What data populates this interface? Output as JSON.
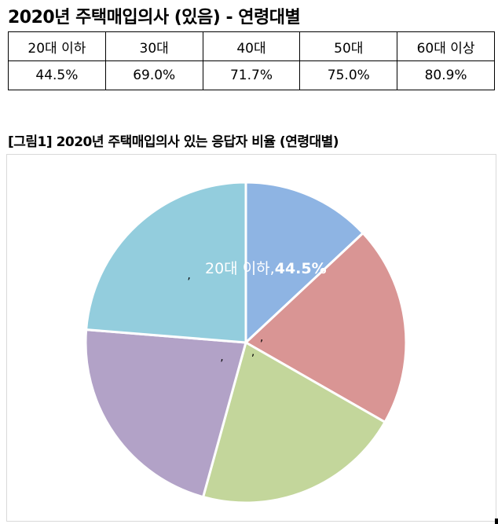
{
  "header": {
    "title": "2020년 주택매입의사 (있음) - 연령대별"
  },
  "table": {
    "headers": [
      "20대 이하",
      "30대",
      "40대",
      "50대",
      "60대 이상"
    ],
    "values": [
      "44.5%",
      "69.0%",
      "71.7%",
      "75.0%",
      "80.9%"
    ]
  },
  "caption": "[그림1] 2020년 주택매입의사 있는 응답자 비율 (연령대별)",
  "chart_data": {
    "type": "pie",
    "title": "",
    "categories": [
      "20대 이하",
      "30대",
      "40대",
      "50대",
      "60대 이상"
    ],
    "values": [
      44.5,
      69.0,
      71.7,
      75.0,
      80.9
    ],
    "colors": [
      "#8eb4e3",
      "#d99594",
      "#c3d69b",
      "#b2a2c7",
      "#93cddd"
    ],
    "data_labels": [
      {
        "category": "20대 이하",
        "value": "44.5%"
      },
      {
        "category": "",
        "value": ""
      },
      {
        "category": "",
        "value": ""
      },
      {
        "category": "",
        "value": ""
      },
      {
        "category": "",
        "value": ""
      }
    ],
    "label_separator": ","
  }
}
